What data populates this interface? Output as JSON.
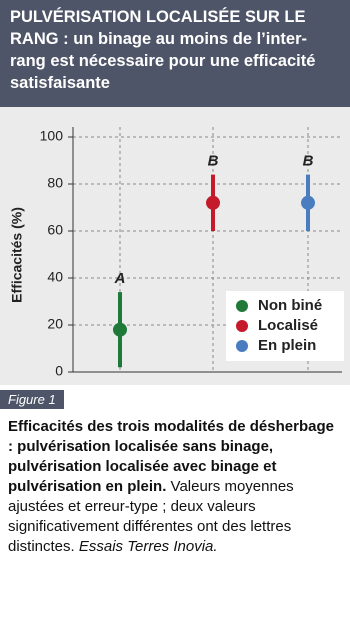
{
  "header": {
    "title": "PULVÉRISATION LOCALISÉE SUR LE RANG : un binage au moins de l’inter-rang est nécessaire pour une efficacité satisfaisante"
  },
  "chart_data": {
    "type": "errorbar",
    "y_label": "Efficacités (%)",
    "ylim": [
      0,
      100
    ],
    "yticks": [
      0,
      20,
      40,
      60,
      80,
      100
    ],
    "grid": true,
    "legend": "lower right",
    "series": [
      {
        "name": "Non biné",
        "color": "#1f7a3a",
        "values": [
          18
        ],
        "errors": [
          16
        ],
        "letters": [
          "A"
        ]
      },
      {
        "name": "Localisé",
        "color": "#c41a2c",
        "values": [
          72
        ],
        "errors": [
          12
        ],
        "letters": [
          "B"
        ]
      },
      {
        "name": "En plein",
        "color": "#4a7cc0",
        "values": [
          72
        ],
        "errors": [
          12
        ],
        "letters": [
          "B"
        ]
      }
    ]
  },
  "figure": {
    "tag": "Figure 1",
    "caption_bold": "Efficacités des trois modalités de désherbage : pulvérisation localisée sans binage, pulvérisation localisée avec binage et pulvérisation en plein.",
    "caption": "Valeurs moyennes ajustées et erreur-type ; deux valeurs significativement différentes ont des lettres distinctes.",
    "source": "Essais Terres Inovia."
  }
}
